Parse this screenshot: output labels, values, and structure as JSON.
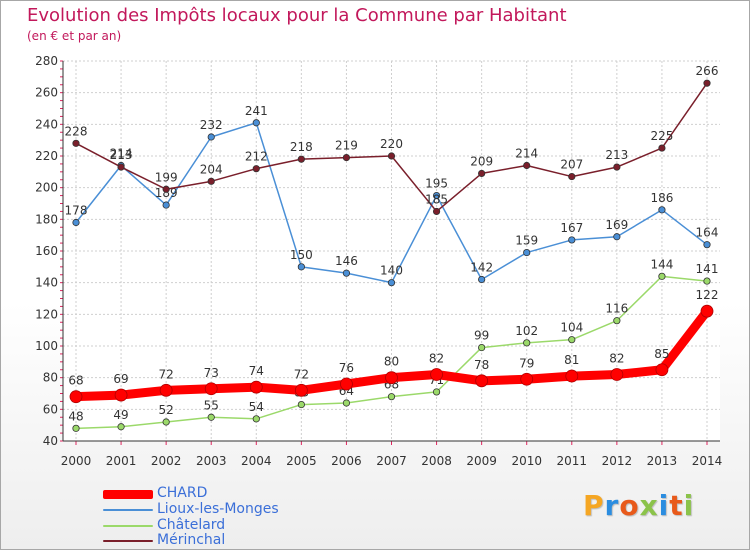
{
  "title": "Evolution des Impôts locaux pour la Commune par Habitant",
  "subtitle": "(en € et par an)",
  "logo": {
    "text": "Proxiti",
    "colors": [
      "#f5a623",
      "#2b8de0",
      "#e85a1b",
      "#8bc34a",
      "#2b8de0",
      "#e85a1b",
      "#8bc34a"
    ]
  },
  "chart_data": {
    "type": "line",
    "categories": [
      "2000",
      "2001",
      "2002",
      "2003",
      "2004",
      "2005",
      "2006",
      "2007",
      "2008",
      "2009",
      "2010",
      "2011",
      "2012",
      "2013",
      "2014"
    ],
    "yticks": [
      "40",
      "60",
      "80",
      "100",
      "120",
      "140",
      "160",
      "180",
      "200",
      "220",
      "240",
      "260",
      "280"
    ],
    "ylim": [
      40,
      280
    ],
    "grid": true,
    "legend_position": "bottom-left",
    "series": [
      {
        "name": "Lioux-les-Monges",
        "color": "#4a8fd6",
        "values": [
          178,
          214,
          189,
          232,
          241,
          150,
          146,
          140,
          195,
          142,
          159,
          167,
          169,
          186,
          164
        ],
        "labels": [
          "178",
          "214",
          "189",
          "232",
          "241",
          "150",
          "146",
          "140",
          "195",
          "142",
          "159",
          "167",
          "169",
          "186",
          "164"
        ]
      },
      {
        "name": "Châtelard",
        "color": "#9bd96a",
        "values": [
          48,
          49,
          52,
          55,
          54,
          63,
          64,
          68,
          71,
          99,
          102,
          104,
          116,
          144,
          141
        ],
        "labels": [
          "48",
          "49",
          "52",
          "55",
          "54",
          "63",
          "64",
          "68",
          "71",
          "99",
          "102",
          "104",
          "116",
          "144",
          "141"
        ]
      },
      {
        "name": "Mérinchal",
        "color": "#7a1f2b",
        "values": [
          228,
          213,
          199,
          204,
          212,
          218,
          219,
          220,
          185,
          209,
          214,
          207,
          213,
          225,
          266
        ],
        "labels": [
          "228",
          "213",
          "199",
          "204",
          "212",
          "218",
          "219",
          "220",
          "185",
          "209",
          "214",
          "207",
          "213",
          "225",
          "266"
        ]
      },
      {
        "name": "CHARD",
        "color": "#ff0000",
        "values": [
          68,
          69,
          72,
          73,
          74,
          72,
          76,
          80,
          82,
          78,
          79,
          81,
          82,
          85,
          122
        ],
        "labels": [
          "68",
          "69",
          "72",
          "73",
          "74",
          "72",
          "76",
          "80",
          "82",
          "78",
          "79",
          "81",
          "82",
          "85",
          "122"
        ]
      }
    ]
  }
}
